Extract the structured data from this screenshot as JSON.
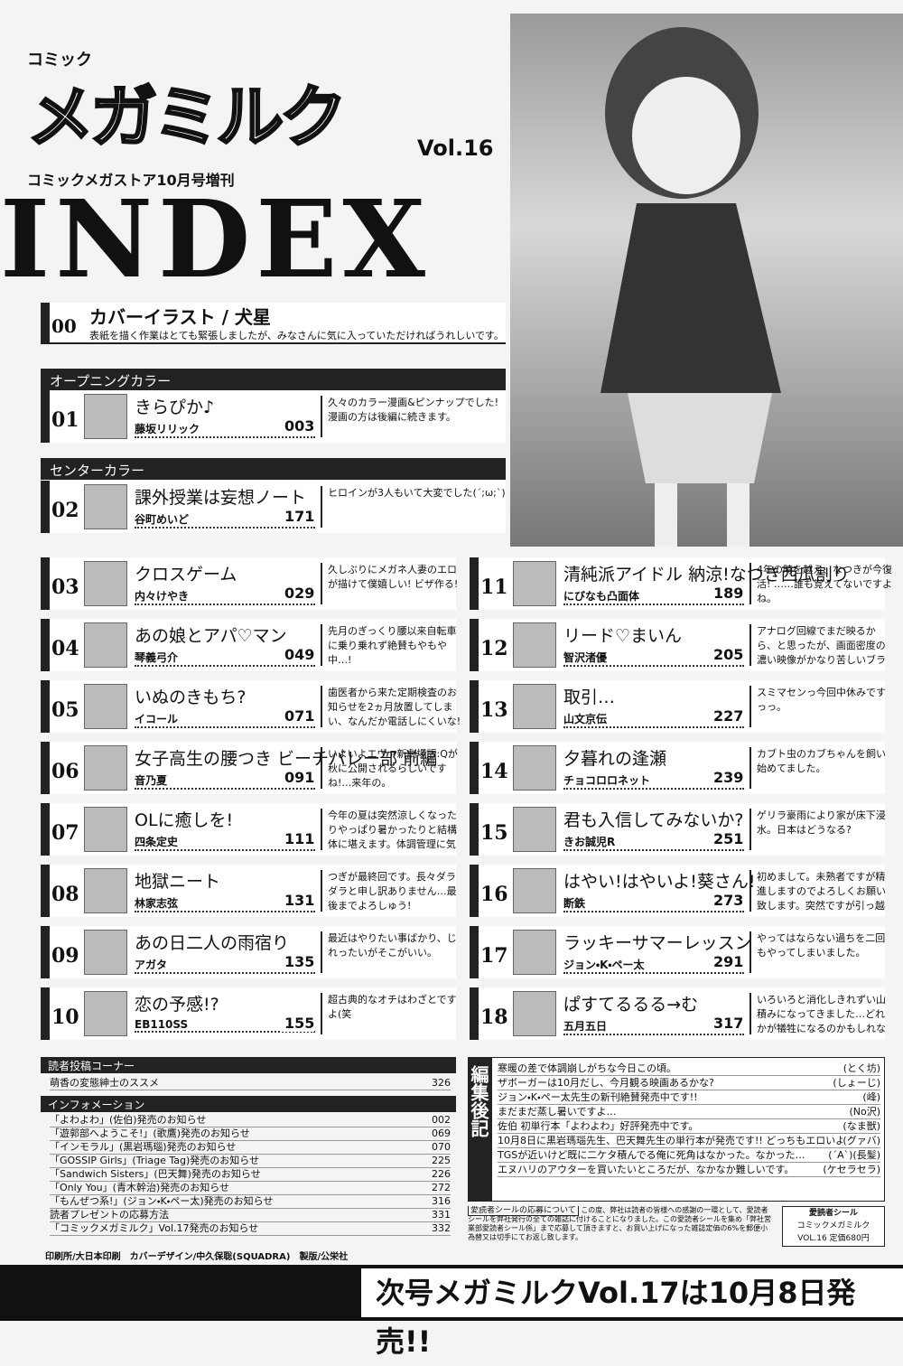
{
  "header": {
    "logo_small": "コミック",
    "logo": "メガミルク",
    "vol": "Vol.16",
    "subtitle": "コミックメガストア10月号増刊",
    "index": "INDEX"
  },
  "cover": {
    "num": "00",
    "title": "カバーイラスト / 犬星",
    "comment": "表紙を描く作業はとても緊張しましたが、みなさんに気に入っていただければうれしいです。"
  },
  "sections": {
    "opening": "オープニングカラー",
    "center": "センターカラー"
  },
  "entries": [
    {
      "num": "01",
      "title": "きらぴか♪",
      "author": "藤坂リリック",
      "page": "003",
      "comment": "久々のカラー漫画&ピンナップでした! 漫画の方は後編に続きます。"
    },
    {
      "num": "02",
      "title": "課外授業は妄想ノート",
      "author": "谷町めいど",
      "page": "171",
      "comment": "ヒロインが3人もいて大変でした(´;ω;`)"
    },
    {
      "num": "03",
      "title": "クロスゲーム",
      "author": "内々けやき",
      "page": "029",
      "comment": "久しぶりにメガネ人妻のエロが描けて僕嬉しい! ビザ作る!"
    },
    {
      "num": "04",
      "title": "あの娘とアパ♡マン",
      "author": "琴義弓介",
      "page": "049",
      "comment": "先月のぎっくり腰以来自転車に乗り乗れず絶賛もやもや中…!"
    },
    {
      "num": "05",
      "title": "いぬのきもち?",
      "author": "イコール",
      "page": "071",
      "comment": "歯医者から来た定期検査のお知らせを2ヵ月放置してしまい、なんだか電話しにくいな!"
    },
    {
      "num": "06",
      "title": "女子高生の腰つき ビーチバレー部 前編",
      "author": "音乃夏",
      "page": "091",
      "comment": "いよいよエヴァ新劇場版:Qが秋に公開されるらしいですね!…来年の。"
    },
    {
      "num": "07",
      "title": "OLに癒しを!",
      "author": "四条定史",
      "page": "111",
      "comment": "今年の夏は突然涼しくなったりやっぱり暑かったりと結構体に堪えます。体調管理に気を付けないと…。"
    },
    {
      "num": "08",
      "title": "地獄ニート",
      "author": "林家志弦",
      "page": "131",
      "comment": "つぎが最終回です。長々ダラダラと申し訳ありません…最後までよろしゅう!"
    },
    {
      "num": "09",
      "title": "あの日二人の雨宿り",
      "author": "アガタ",
      "page": "135",
      "comment": "最近はやりたい事ばかり、じれったいがそこがいい。"
    },
    {
      "num": "10",
      "title": "恋の予感!?",
      "author": "EB110SS",
      "page": "155",
      "comment": "超古典的なオチはわざとですよ(笑"
    },
    {
      "num": "11",
      "title": "清純派アイドル 納涼!なつき西瓜割り",
      "author": "にびなも凸面体",
      "page": "189",
      "comment": "4年の時を越え、なつきが今復活! ……誰も覚えてないですよね。"
    },
    {
      "num": "12",
      "title": "リード♡まいん",
      "author": "智沢渚優",
      "page": "205",
      "comment": "アナログ回線でまだ映るから、と思ったが、画面密度の濃い映像がかなり苦しいブラウン管TVがいつまで持つ?"
    },
    {
      "num": "13",
      "title": "取引…",
      "author": "山文京伝",
      "page": "227",
      "comment": "スミマセンっ今回中休みですっっ。"
    },
    {
      "num": "14",
      "title": "夕暮れの逢瀬",
      "author": "チョコロロネット",
      "page": "239",
      "comment": "カブト虫のカブちゃんを飼い始めてました。"
    },
    {
      "num": "15",
      "title": "君も入信してみないか?",
      "author": "きお誠児R",
      "page": "251",
      "comment": "ゲリラ豪雨により家が床下浸水。日本はどうなる?"
    },
    {
      "num": "16",
      "title": "はやい!はやいよ!葵さん!",
      "author": "断鉄",
      "page": "273",
      "comment": "初めまして。未熟者ですが精進しますのでよろしくお願い致します。突然ですが引っ越しました。"
    },
    {
      "num": "17",
      "title": "ラッキーサマーレッスン",
      "author": "ジョン・K・ペー太",
      "page": "291",
      "comment": "やってはならない過ちを二回もやってしまいました。"
    },
    {
      "num": "18",
      "title": "ぱすてるるる→む",
      "author": "五月五日",
      "page": "317",
      "comment": "いろいろと消化しきれずい山積みになってきました…どれかが犠牲になるのかもしれない。"
    }
  ],
  "reader": {
    "title": "読者投稿コーナー",
    "items": [
      {
        "text": "萌香の変態紳士のススメ",
        "page": "326"
      }
    ]
  },
  "info": {
    "title": "インフォメーション",
    "items": [
      {
        "text": "「よわよわ」(佐伯)発売のお知らせ",
        "page": "002"
      },
      {
        "text": "「遊郭部へようこそ!」(歌鷹)発売のお知らせ",
        "page": "069"
      },
      {
        "text": "「インモラル」(黒岩瑪瑙)発売のお知らせ",
        "page": "070"
      },
      {
        "text": "「GOSSIP Girls」(Triage Tag)発売のお知らせ",
        "page": "225"
      },
      {
        "text": "「Sandwich Sisters」(巴天舞)発売のお知らせ",
        "page": "226"
      },
      {
        "text": "「Only You」(青木幹治)発売のお知らせ",
        "page": "272"
      },
      {
        "text": "「もんぜつ系!」(ジョン・K・ペー太)発売のお知らせ",
        "page": "316"
      },
      {
        "text": "読者プレゼントの応募方法",
        "page": "331"
      },
      {
        "text": "「コミックメガミルク」Vol.17発売のお知らせ",
        "page": "332"
      }
    ]
  },
  "editorial": {
    "title": "編集後記",
    "lines": [
      {
        "text": "寒暖の差で体調崩しがちな今日この頃。",
        "by": "(とく坊)"
      },
      {
        "text": "ザボーガーは10月だし、今月観る映画あるかな?",
        "by": "(しょーじ)"
      },
      {
        "text": "ジョン・K・ペー太先生の新刊絶賛発売中です!!",
        "by": "(峰)"
      },
      {
        "text": "まだまだ蒸し暑いですよ…",
        "by": "(No沢)"
      },
      {
        "text": "佐伯 初単行本「よわよわ」好評発売中です。",
        "by": "(なま獣)"
      },
      {
        "text": "10月8日に黒岩瑪瑙先生、巴天舞先生の単行本が発売です!! どっちもエロいよ!!",
        "by": "(グァバ)"
      },
      {
        "text": "TGSが近いけど既に二ケタ積んでる俺に死角はなかった。なかった…",
        "by": "(´A`)(長髪)"
      },
      {
        "text": "エヌハリのアウターを買いたいところだが、なかなか難しいです。",
        "by": "(ケセラセラ)"
      }
    ]
  },
  "sticker": {
    "label": "愛読者シールの応募について",
    "text": "この度、弊社は読者の皆様への感謝の一環として、愛読者シールを弊社発行の全ての雑誌に付けることになりました。この愛読者シールを集め「弊社営業部愛読者シール係」まで応募して頂きますと、お買い上げになった雑誌定価の6%を郵便小為替又は切手にてお返し致します。",
    "box_title": "愛読者シール",
    "box_name": "コミックメガミルク",
    "box_price": "VOL.16 定価680円"
  },
  "credits": "印刷所/大日本印刷　カバーデザイン/中久保聡(SQUADRA)　製版/公栄社",
  "banner": "次号メガミルクVol.17は10月8日発売!!"
}
